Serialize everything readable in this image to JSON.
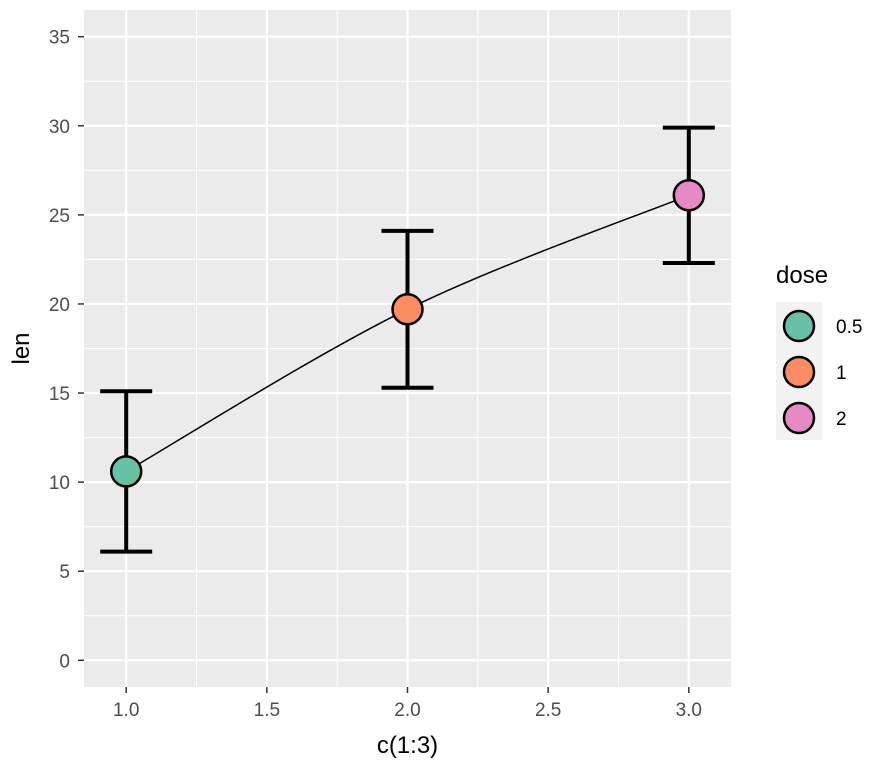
{
  "chart_data": {
    "type": "line",
    "title": "",
    "xlabel": "c(1:3)",
    "ylabel": "len",
    "xlim": [
      0.85,
      3.15
    ],
    "ylim": [
      -1.5,
      36.5
    ],
    "x_ticks": [
      1.0,
      1.5,
      2.0,
      2.5,
      3.0
    ],
    "x_tick_labels": [
      "1.0",
      "1.5",
      "2.0",
      "2.5",
      "3.0"
    ],
    "y_ticks": [
      0,
      5,
      10,
      15,
      20,
      25,
      30,
      35
    ],
    "y_tick_labels": [
      "0",
      "5",
      "10",
      "15",
      "20",
      "25",
      "30",
      "35"
    ],
    "grid": true,
    "points": [
      {
        "x": 1,
        "y": 10.6,
        "ymin": 6.1,
        "ymax": 15.1,
        "dose": "0.5",
        "color": "#66C2A5"
      },
      {
        "x": 2,
        "y": 19.7,
        "ymin": 15.3,
        "ymax": 24.1,
        "dose": "1",
        "color": "#FC8D62"
      },
      {
        "x": 3,
        "y": 26.1,
        "ymin": 22.3,
        "ymax": 29.9,
        "dose": "2",
        "color": "#E78AC3"
      }
    ],
    "legend": {
      "title": "dose",
      "position": "right",
      "entries": [
        {
          "label": "0.5",
          "color": "#66C2A5"
        },
        {
          "label": "1",
          "color": "#FC8D62"
        },
        {
          "label": "2",
          "color": "#E78AC3"
        }
      ]
    },
    "panel_color": "#EBEBEB",
    "grid_color": "#FFFFFF"
  }
}
